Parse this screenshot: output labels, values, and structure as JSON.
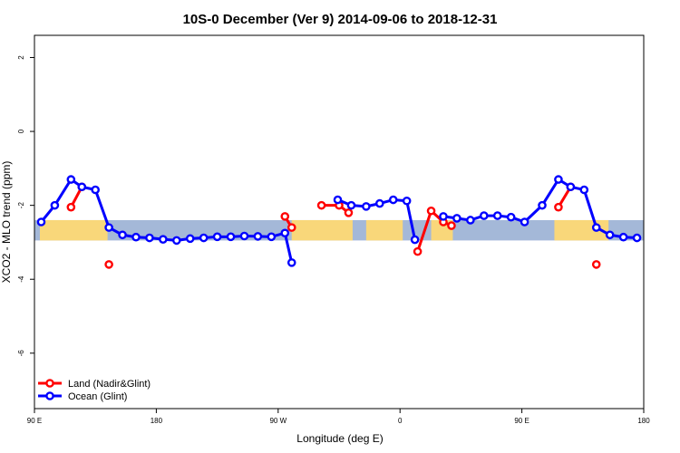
{
  "chart_data": {
    "type": "line",
    "title": "10S-0 December (Ver 9)   2014-09-06 to 2018-12-31",
    "xlabel": "Longitude (deg E)",
    "ylabel": "XCO2 - MLO trend (ppm)",
    "xlim": [
      90,
      540
    ],
    "ylim": [
      -7.5,
      2.6
    ],
    "x_ticks": [
      {
        "value": 90,
        "label": "90 E"
      },
      {
        "value": 180,
        "label": "180"
      },
      {
        "value": 270,
        "label": "90 W"
      },
      {
        "value": 360,
        "label": "0"
      },
      {
        "value": 450,
        "label": "90 E"
      },
      {
        "value": 540,
        "label": "180"
      }
    ],
    "y_ticks": [
      {
        "value": 2,
        "label": "2"
      },
      {
        "value": 0,
        "label": "0"
      },
      {
        "value": -2,
        "label": "-2"
      },
      {
        "value": -4,
        "label": "-4"
      },
      {
        "value": -6,
        "label": "-6"
      }
    ],
    "band": {
      "y_from": -2.4,
      "y_to": -2.95
    },
    "land_segments": [
      {
        "x_from": 94,
        "x_to": 144
      },
      {
        "x_from": 280,
        "x_to": 325
      },
      {
        "x_from": 335,
        "x_to": 362
      },
      {
        "x_from": 383,
        "x_to": 399
      },
      {
        "x_from": 474,
        "x_to": 514
      }
    ],
    "series": [
      {
        "name": "Land (Nadir&Glint)",
        "color": "#ff0000",
        "segments": [
          [
            {
              "x": 117,
              "y": -2.05
            },
            {
              "x": 125,
              "y": -1.5
            }
          ],
          [
            {
              "x": 145,
              "y": -3.6
            }
          ],
          [
            {
              "x": 275,
              "y": -2.3
            },
            {
              "x": 280,
              "y": -2.6
            }
          ],
          [
            {
              "x": 302,
              "y": -2.0
            },
            {
              "x": 315,
              "y": -2.0
            },
            {
              "x": 322,
              "y": -2.2
            }
          ],
          [
            {
              "x": 373,
              "y": -3.25
            },
            {
              "x": 383,
              "y": -2.15
            },
            {
              "x": 392,
              "y": -2.45
            },
            {
              "x": 398,
              "y": -2.55
            }
          ],
          [
            {
              "x": 477,
              "y": -2.05
            },
            {
              "x": 486,
              "y": -1.5
            }
          ],
          [
            {
              "x": 505,
              "y": -3.6
            }
          ]
        ]
      },
      {
        "name": "Ocean (Glint)",
        "color": "#0000ff",
        "segments": [
          [
            {
              "x": 95,
              "y": -2.45
            },
            {
              "x": 105,
              "y": -2.0
            },
            {
              "x": 117,
              "y": -1.3
            },
            {
              "x": 125,
              "y": -1.5
            },
            {
              "x": 135,
              "y": -1.58
            },
            {
              "x": 145,
              "y": -2.6
            },
            {
              "x": 155,
              "y": -2.8
            },
            {
              "x": 165,
              "y": -2.86
            },
            {
              "x": 175,
              "y": -2.88
            },
            {
              "x": 185,
              "y": -2.92
            },
            {
              "x": 195,
              "y": -2.95
            },
            {
              "x": 205,
              "y": -2.9
            },
            {
              "x": 215,
              "y": -2.88
            },
            {
              "x": 225,
              "y": -2.85
            },
            {
              "x": 235,
              "y": -2.85
            },
            {
              "x": 245,
              "y": -2.83
            },
            {
              "x": 255,
              "y": -2.84
            },
            {
              "x": 265,
              "y": -2.85
            },
            {
              "x": 275,
              "y": -2.75
            },
            {
              "x": 280,
              "y": -3.55
            }
          ],
          [
            {
              "x": 314,
              "y": -1.85
            },
            {
              "x": 324,
              "y": -2.0
            },
            {
              "x": 335,
              "y": -2.03
            },
            {
              "x": 345,
              "y": -1.95
            },
            {
              "x": 355,
              "y": -1.85
            },
            {
              "x": 365,
              "y": -1.88
            },
            {
              "x": 371,
              "y": -2.93
            }
          ],
          [
            {
              "x": 392,
              "y": -2.3
            },
            {
              "x": 402,
              "y": -2.35
            },
            {
              "x": 412,
              "y": -2.4
            },
            {
              "x": 422,
              "y": -2.28
            },
            {
              "x": 432,
              "y": -2.28
            },
            {
              "x": 442,
              "y": -2.32
            },
            {
              "x": 452,
              "y": -2.45
            },
            {
              "x": 465,
              "y": -2.0
            },
            {
              "x": 477,
              "y": -1.3
            },
            {
              "x": 486,
              "y": -1.5
            },
            {
              "x": 496,
              "y": -1.58
            },
            {
              "x": 505,
              "y": -2.6
            },
            {
              "x": 515,
              "y": -2.8
            },
            {
              "x": 525,
              "y": -2.86
            },
            {
              "x": 535,
              "y": -2.88
            }
          ]
        ]
      }
    ],
    "legend_position": "bottom-left"
  }
}
